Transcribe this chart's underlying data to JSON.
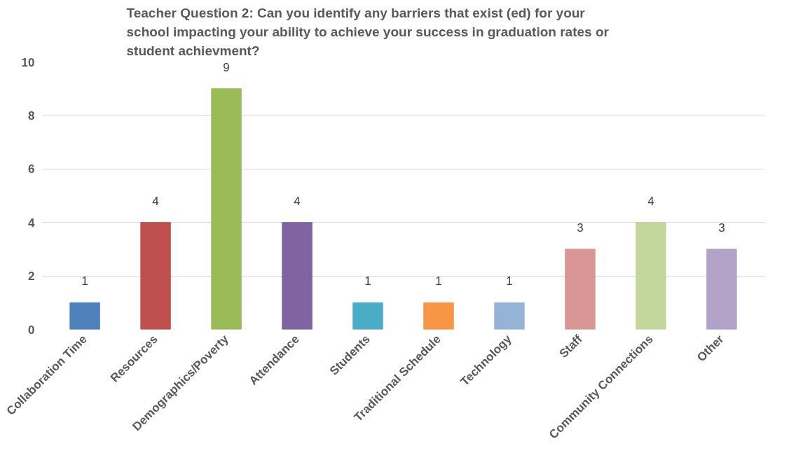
{
  "chart_data": {
    "type": "bar",
    "title": "Teacher Question 2: Can you identify any barriers that exist (ed) for your school impacting your ability to achieve your success in graduation rates or student achievment?",
    "categories": [
      "Collaboration Time",
      "Resources",
      "Demographics/Poverty",
      "Attendance",
      "Students",
      "Traditional Schedule",
      "Technology",
      "Staff",
      "Community Connections",
      "Other"
    ],
    "values": [
      1,
      4,
      9,
      4,
      1,
      1,
      1,
      3,
      4,
      3
    ],
    "colors": [
      "#4f81bd",
      "#c0504d",
      "#9bbb59",
      "#8064a2",
      "#4bacc6",
      "#f79646",
      "#95b3d7",
      "#d99694",
      "#c3d69b",
      "#b3a2c7"
    ],
    "ylim": [
      0,
      10
    ],
    "yticks": [
      0,
      2,
      4,
      6,
      8,
      10
    ],
    "grid": "y",
    "data_labels": true
  }
}
